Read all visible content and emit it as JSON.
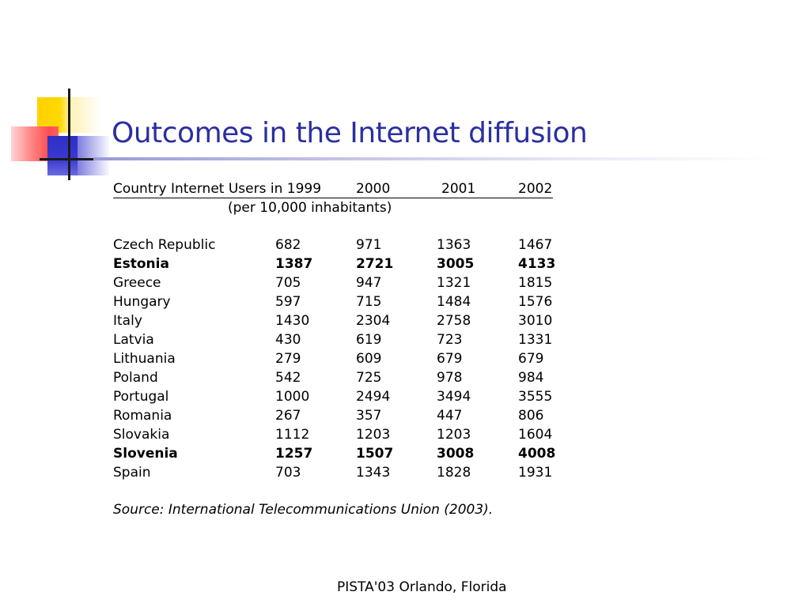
{
  "slide": {
    "title": "Outcomes in the Internet diffusion",
    "table": {
      "header": {
        "country_label": "Country Internet Users in 1999",
        "y2000": "2000",
        "y2001": "2001",
        "y2002": "2002"
      },
      "subheader": "(per 10,000 inhabitants)",
      "rows": [
        {
          "country": "Czech Republic",
          "y1999": "682",
          "y2000": "971",
          "y2001": "1363",
          "y2002": "1467",
          "bold": false
        },
        {
          "country": "Estonia",
          "y1999": "1387",
          "y2000": "2721",
          "y2001": "3005",
          "y2002": "4133",
          "bold": true
        },
        {
          "country": "Greece",
          "y1999": "705",
          "y2000": "947",
          "y2001": "1321",
          "y2002": "1815",
          "bold": false
        },
        {
          "country": "Hungary",
          "y1999": "597",
          "y2000": "715",
          "y2001": "1484",
          "y2002": "1576",
          "bold": false
        },
        {
          "country": "Italy",
          "y1999": "1430",
          "y2000": "2304",
          "y2001": "2758",
          "y2002": "3010",
          "bold": false
        },
        {
          "country": "Latvia",
          "y1999": "430",
          "y2000": "619",
          "y2001": "723",
          "y2002": "1331",
          "bold": false
        },
        {
          "country": "Lithuania",
          "y1999": "279",
          "y2000": "609",
          "y2001": "679",
          "y2002": "679",
          "bold": false
        },
        {
          "country": "Poland",
          "y1999": "542",
          "y2000": "725",
          "y2001": "978",
          "y2002": "984",
          "bold": false
        },
        {
          "country": "Portugal",
          "y1999": "1000",
          "y2000": "2494",
          "y2001": "3494",
          "y2002": "3555",
          "bold": false
        },
        {
          "country": "Romania",
          "y1999": "267",
          "y2000": "357",
          "y2001": "447",
          "y2002": "806",
          "bold": false
        },
        {
          "country": "Slovakia",
          "y1999": "1112",
          "y2000": "1203",
          "y2001": "1203",
          "y2002": "1604",
          "bold": false
        },
        {
          "country": "Slovenia",
          "y1999": "1257",
          "y2000": "1507",
          "y2001": "3008",
          "y2002": "4008",
          "bold": true
        },
        {
          "country": "Spain",
          "y1999": "703",
          "y2000": "1343",
          "y2001": "1828",
          "y2002": "1931",
          "bold": false
        }
      ]
    },
    "source": "Source: International Telecommunications Union (2003).",
    "footer": "PISTA'03 Orlando, Florida"
  },
  "colors": {
    "title": "#2b2fa0",
    "accent_yellow": "#ffd200",
    "accent_red": "#ff4d4d",
    "accent_blue": "#2f2fc6"
  }
}
